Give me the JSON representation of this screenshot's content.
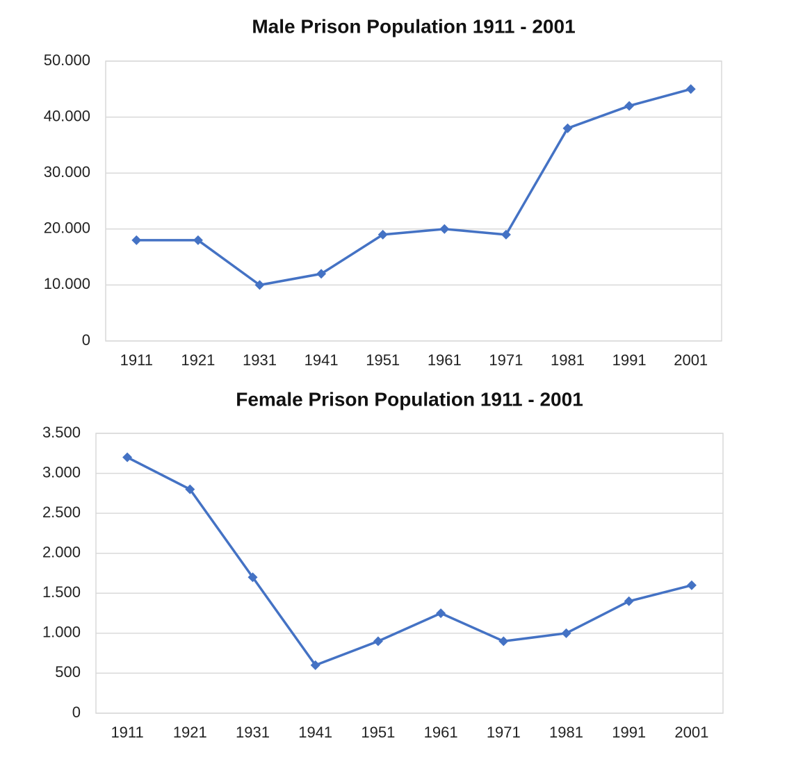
{
  "chart_data": [
    {
      "type": "line",
      "title": "Male Prison Population 1911 - 2001",
      "categories": [
        "1911",
        "1921",
        "1931",
        "1941",
        "1951",
        "1961",
        "1971",
        "1981",
        "1991",
        "2001"
      ],
      "values": [
        18000,
        18000,
        10000,
        12000,
        19000,
        20000,
        19000,
        38000,
        42000,
        45000
      ],
      "color": "#4472c4",
      "ylim": [
        0,
        50000
      ],
      "yticks": [
        0,
        {
          "value": 10000,
          "label": "10.000"
        },
        {
          "value": 20000,
          "label": "20.000"
        },
        {
          "value": 30000,
          "label": "30.000"
        },
        {
          "value": 40000,
          "label": "40.000"
        },
        {
          "value": 50000,
          "label": "50.000"
        }
      ],
      "grid": true
    },
    {
      "type": "line",
      "title": "Female Prison Population 1911 - 2001",
      "categories": [
        "1911",
        "1921",
        "1931",
        "1941",
        "1951",
        "1961",
        "1971",
        "1981",
        "1991",
        "2001"
      ],
      "values": [
        3200,
        2800,
        1700,
        600,
        900,
        1250,
        900,
        1000,
        1400,
        1600
      ],
      "color": "#4472c4",
      "ylim": [
        0,
        3500
      ],
      "yticks": [
        0,
        500,
        {
          "value": 1000,
          "label": "1.000"
        },
        {
          "value": 1500,
          "label": "1.500"
        },
        {
          "value": 2000,
          "label": "2.000"
        },
        {
          "value": 2500,
          "label": "2.500"
        },
        {
          "value": 3000,
          "label": "3.000"
        },
        {
          "value": 3500,
          "label": "3.500"
        }
      ],
      "grid": true
    }
  ]
}
